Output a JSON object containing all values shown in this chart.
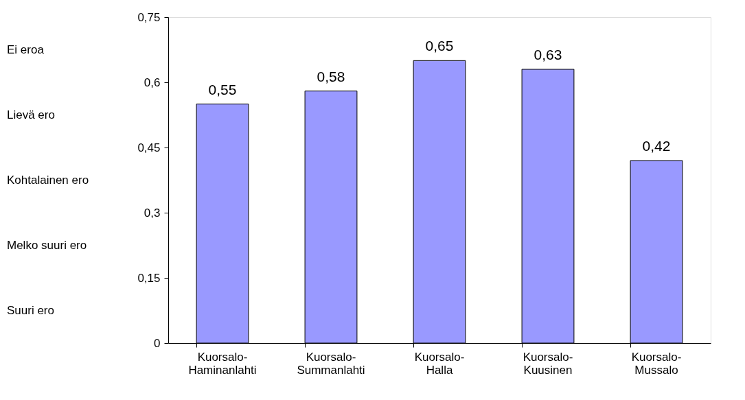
{
  "chart_data": {
    "type": "bar",
    "categories": [
      "Kuorsalo-\nHaminanlahti",
      "Kuorsalo-\nSummanlahti",
      "Kuorsalo-\nHalla",
      "Kuorsalo-\nKuusinen",
      "Kuorsalo-\nMussalo"
    ],
    "values": [
      0.55,
      0.58,
      0.65,
      0.63,
      0.42
    ],
    "value_labels": [
      "0,55",
      "0,58",
      "0,65",
      "0,63",
      "0,42"
    ],
    "color": "#9999ff",
    "ylim": [
      0,
      0.75
    ],
    "yticks": [
      {
        "value": 0,
        "label": "0"
      },
      {
        "value": 0.15,
        "label": "0,15"
      },
      {
        "value": 0.3,
        "label": "0,3"
      },
      {
        "value": 0.45,
        "label": "0,45"
      },
      {
        "value": 0.6,
        "label": "0,6"
      },
      {
        "value": 0.75,
        "label": "0,75"
      }
    ],
    "annotations": [
      "Ei eroa",
      "Lievä ero",
      "Kohtalainen ero",
      "Melko suuri ero",
      "Suuri ero"
    ],
    "grid": false
  }
}
